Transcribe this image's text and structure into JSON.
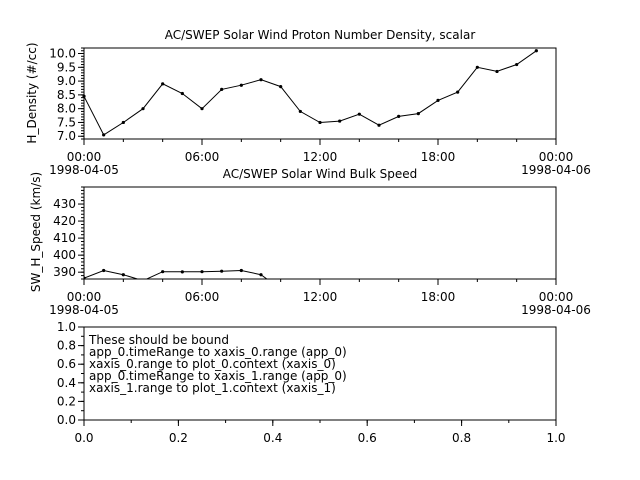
{
  "chart_data": [
    {
      "type": "line",
      "title": "AC/SWEP  Solar Wind Proton Number Density, scalar",
      "ylabel": "H_Density (#/cc)",
      "ylim": [
        6.9,
        10.2
      ],
      "yticks": [
        7.0,
        7.5,
        8.0,
        8.5,
        9.0,
        9.5,
        10.0
      ],
      "ytick_labels": [
        "7.0",
        "7.5",
        "8.0",
        "8.5",
        "9.0",
        "9.5",
        "10.0"
      ],
      "xlim_hours": [
        0,
        24
      ],
      "xticks_hours": [
        0,
        6,
        12,
        18,
        24
      ],
      "xtick_labels": [
        "00:00",
        "06:00",
        "12:00",
        "18:00",
        "00:00"
      ],
      "xdate_labels": [
        "1998-04-05",
        "1998-04-06"
      ],
      "x": [
        0,
        1,
        2,
        3,
        4,
        5,
        6,
        7,
        8,
        9,
        10,
        11,
        12,
        13,
        14,
        15,
        16,
        17,
        18,
        19,
        20,
        21,
        22,
        23
      ],
      "y": [
        8.45,
        7.05,
        7.5,
        8.0,
        8.9,
        8.55,
        8.0,
        8.7,
        8.85,
        9.05,
        8.8,
        7.9,
        7.5,
        7.55,
        7.8,
        7.4,
        7.72,
        7.82,
        8.3,
        8.6,
        9.5,
        9.35,
        9.6,
        10.1
      ]
    },
    {
      "type": "line",
      "title": "AC/SWEP  Solar Wind Bulk Speed",
      "ylabel": "SW_H_Speed (km/s)",
      "ylim": [
        386,
        440
      ],
      "yticks": [
        390,
        400,
        410,
        420,
        430
      ],
      "ytick_labels": [
        "390",
        "400",
        "410",
        "420",
        "430"
      ],
      "xlim_hours": [
        0,
        24
      ],
      "xticks_hours": [
        0,
        6,
        12,
        18,
        24
      ],
      "xtick_labels": [
        "00:00",
        "06:00",
        "12:00",
        "18:00",
        "00:00"
      ],
      "xdate_labels": [
        "1998-04-05",
        "1998-04-06"
      ],
      "x": [
        0,
        1,
        2,
        3,
        4,
        5,
        6,
        7,
        8,
        9,
        10
      ],
      "y": [
        386.5,
        391,
        388.5,
        385,
        390.3,
        390.2,
        390.3,
        390.6,
        391,
        388.5,
        380
      ]
    },
    {
      "type": "line",
      "xlim": [
        0.0,
        1.0
      ],
      "ylim": [
        0.0,
        1.0
      ],
      "xticks": [
        0.0,
        0.2,
        0.4,
        0.6,
        0.8,
        1.0
      ],
      "yticks": [
        0.0,
        0.2,
        0.4,
        0.6,
        0.8,
        1.0
      ],
      "xtick_labels": [
        "0.0",
        "0.2",
        "0.4",
        "0.6",
        "0.8",
        "1.0"
      ],
      "ytick_labels": [
        "0.0",
        "0.2",
        "0.4",
        "0.6",
        "0.8",
        "1.0"
      ],
      "annotation_lines": [
        "These should be bound",
        "app_0.timeRange to xaxis_0.range  (app_0)",
        "xaxis_0.range to plot_0.context  (xaxis_0)",
        "app_0.timeRange to xaxis_1.range  (app_0)",
        "xaxis_1.range to plot_1.context  (xaxis_1)"
      ]
    }
  ]
}
